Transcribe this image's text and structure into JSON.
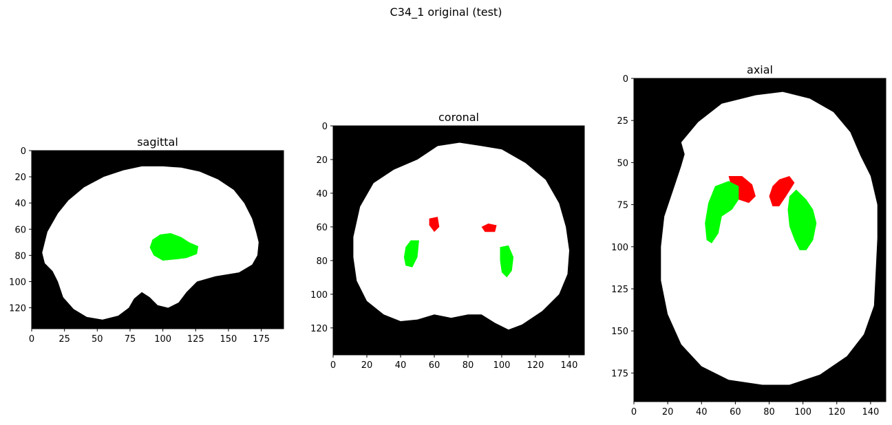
{
  "figure_title": "C34_1 original (test)",
  "colors": {
    "background": "#000000",
    "brain": "#ffffff",
    "label_a": "#00ff00",
    "label_b": "#ff0000"
  },
  "chart_data": [
    {
      "type": "heatmap",
      "title": "sagittal",
      "xlim": [
        0,
        192
      ],
      "ylim": [
        136,
        0
      ],
      "x_ticks": [
        0,
        25,
        50,
        75,
        100,
        125,
        150,
        175
      ],
      "y_ticks": [
        0,
        20,
        40,
        60,
        80,
        100,
        120
      ],
      "brain_outline": [
        [
          8,
          78
        ],
        [
          12,
          62
        ],
        [
          20,
          48
        ],
        [
          28,
          38
        ],
        [
          40,
          28
        ],
        [
          55,
          20
        ],
        [
          70,
          15
        ],
        [
          84,
          12
        ],
        [
          100,
          12
        ],
        [
          114,
          13
        ],
        [
          128,
          16
        ],
        [
          142,
          22
        ],
        [
          154,
          30
        ],
        [
          162,
          40
        ],
        [
          168,
          52
        ],
        [
          171,
          62
        ],
        [
          173,
          70
        ],
        [
          172,
          80
        ],
        [
          168,
          87
        ],
        [
          158,
          93
        ],
        [
          140,
          96
        ],
        [
          126,
          100
        ],
        [
          118,
          108
        ],
        [
          112,
          116
        ],
        [
          104,
          120
        ],
        [
          96,
          118
        ],
        [
          90,
          112
        ],
        [
          84,
          108
        ],
        [
          78,
          113
        ],
        [
          74,
          120
        ],
        [
          66,
          126
        ],
        [
          54,
          129
        ],
        [
          42,
          127
        ],
        [
          32,
          121
        ],
        [
          24,
          112
        ],
        [
          20,
          100
        ],
        [
          16,
          92
        ],
        [
          10,
          86
        ]
      ],
      "blobs": [
        {
          "color": "label_a",
          "outline": [
            [
              92,
              68
            ],
            [
              98,
              64
            ],
            [
              106,
              63
            ],
            [
              114,
              66
            ],
            [
              120,
              70
            ],
            [
              127,
              73
            ],
            [
              126,
              79
            ],
            [
              118,
              82
            ],
            [
              110,
              83
            ],
            [
              100,
              84
            ],
            [
              93,
              80
            ],
            [
              90,
              74
            ]
          ]
        }
      ]
    },
    {
      "type": "heatmap",
      "title": "coronal",
      "xlim": [
        0,
        149
      ],
      "ylim": [
        136,
        0
      ],
      "x_ticks": [
        0,
        20,
        40,
        60,
        80,
        100,
        120,
        140
      ],
      "y_ticks": [
        0,
        20,
        40,
        60,
        80,
        100,
        120
      ],
      "brain_outline": [
        [
          12,
          66
        ],
        [
          16,
          48
        ],
        [
          24,
          34
        ],
        [
          36,
          26
        ],
        [
          50,
          20
        ],
        [
          62,
          12
        ],
        [
          75,
          10
        ],
        [
          88,
          12
        ],
        [
          100,
          14
        ],
        [
          114,
          22
        ],
        [
          126,
          32
        ],
        [
          134,
          46
        ],
        [
          138,
          60
        ],
        [
          140,
          74
        ],
        [
          139,
          88
        ],
        [
          134,
          100
        ],
        [
          124,
          110
        ],
        [
          112,
          118
        ],
        [
          104,
          121
        ],
        [
          96,
          117
        ],
        [
          88,
          112
        ],
        [
          80,
          112
        ],
        [
          70,
          114
        ],
        [
          60,
          112
        ],
        [
          50,
          115
        ],
        [
          40,
          116
        ],
        [
          30,
          112
        ],
        [
          20,
          104
        ],
        [
          14,
          92
        ],
        [
          12,
          78
        ]
      ],
      "blobs": [
        {
          "color": "label_b",
          "outline": [
            [
              57,
              55
            ],
            [
              62,
              54
            ],
            [
              63,
              60
            ],
            [
              60,
              63
            ],
            [
              57,
              59
            ]
          ]
        },
        {
          "color": "label_b",
          "outline": [
            [
              88,
              60
            ],
            [
              92,
              58
            ],
            [
              97,
              59
            ],
            [
              96,
              63
            ],
            [
              90,
              63
            ]
          ]
        },
        {
          "color": "label_a",
          "outline": [
            [
              43,
              72
            ],
            [
              46,
              68
            ],
            [
              51,
              68
            ],
            [
              50,
              78
            ],
            [
              47,
              84
            ],
            [
              43,
              83
            ],
            [
              42,
              78
            ]
          ]
        },
        {
          "color": "label_a",
          "outline": [
            [
              99,
              72
            ],
            [
              104,
              71
            ],
            [
              107,
              78
            ],
            [
              106,
              86
            ],
            [
              103,
              90
            ],
            [
              100,
              87
            ],
            [
              99,
              80
            ]
          ]
        }
      ]
    },
    {
      "type": "heatmap",
      "title": "axial",
      "xlim": [
        0,
        149
      ],
      "ylim": [
        192,
        0
      ],
      "x_ticks": [
        0,
        20,
        40,
        60,
        80,
        100,
        120,
        140
      ],
      "y_ticks": [
        0,
        25,
        50,
        75,
        100,
        125,
        150,
        175
      ],
      "brain_outline": [
        [
          28,
          38
        ],
        [
          38,
          26
        ],
        [
          52,
          15
        ],
        [
          72,
          10
        ],
        [
          88,
          8
        ],
        [
          104,
          12
        ],
        [
          118,
          20
        ],
        [
          128,
          32
        ],
        [
          134,
          46
        ],
        [
          140,
          58
        ],
        [
          144,
          75
        ],
        [
          144,
          95
        ],
        [
          143,
          115
        ],
        [
          142,
          135
        ],
        [
          136,
          152
        ],
        [
          126,
          165
        ],
        [
          110,
          176
        ],
        [
          92,
          182
        ],
        [
          76,
          182
        ],
        [
          56,
          179
        ],
        [
          40,
          171
        ],
        [
          28,
          158
        ],
        [
          20,
          140
        ],
        [
          16,
          120
        ],
        [
          16,
          100
        ],
        [
          18,
          82
        ],
        [
          24,
          64
        ],
        [
          28,
          52
        ],
        [
          30,
          45
        ]
      ],
      "blobs": [
        {
          "color": "label_b",
          "outline": [
            [
              56,
              58
            ],
            [
              64,
              58
            ],
            [
              70,
              63
            ],
            [
              72,
              70
            ],
            [
              68,
              74
            ],
            [
              62,
              72
            ],
            [
              58,
              66
            ]
          ]
        },
        {
          "color": "label_b",
          "outline": [
            [
              82,
              64
            ],
            [
              86,
              60
            ],
            [
              92,
              58
            ],
            [
              95,
              62
            ],
            [
              90,
              70
            ],
            [
              86,
              76
            ],
            [
              82,
              76
            ],
            [
              80,
              70
            ]
          ]
        },
        {
          "color": "label_a",
          "outline": [
            [
              44,
              74
            ],
            [
              48,
              64
            ],
            [
              56,
              61
            ],
            [
              62,
              64
            ],
            [
              62,
              72
            ],
            [
              58,
              78
            ],
            [
              52,
              82
            ],
            [
              50,
              92
            ],
            [
              46,
              98
            ],
            [
              43,
              96
            ],
            [
              42,
              86
            ]
          ]
        },
        {
          "color": "label_a",
          "outline": [
            [
              92,
              70
            ],
            [
              96,
              66
            ],
            [
              102,
              72
            ],
            [
              106,
              78
            ],
            [
              108,
              86
            ],
            [
              106,
              96
            ],
            [
              102,
              102
            ],
            [
              98,
              102
            ],
            [
              95,
              96
            ],
            [
              92,
              88
            ],
            [
              91,
              78
            ]
          ]
        }
      ]
    }
  ]
}
